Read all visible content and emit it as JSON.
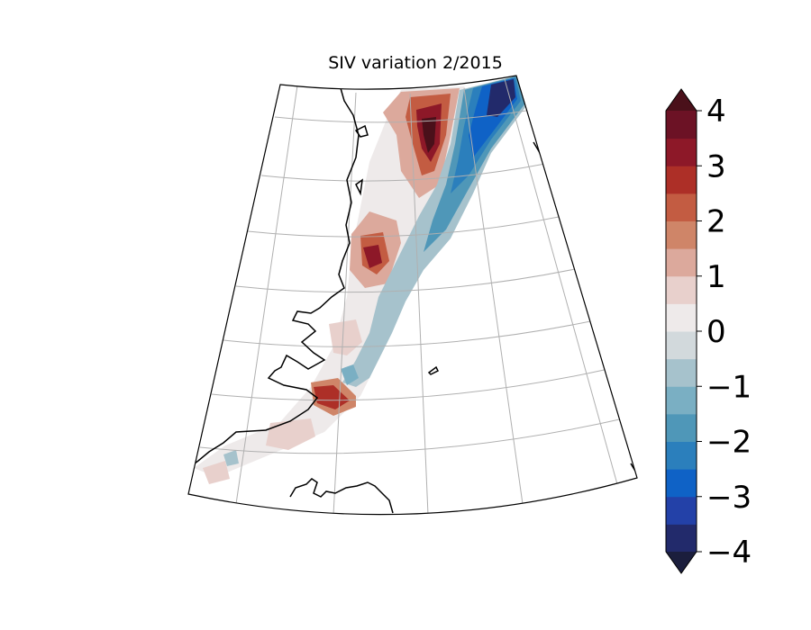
{
  "figure": {
    "title": "SIV variation 2/2015"
  },
  "colorbar": {
    "ticks": [
      "4",
      "3",
      "2",
      "1",
      "0",
      "−1",
      "−2",
      "−3",
      "−4"
    ],
    "range": [
      -4,
      4
    ],
    "levels": 16,
    "extend": "both",
    "colors": [
      "#1b1e3d",
      "#222a6b",
      "#2341a8",
      "#0f62c6",
      "#2b7fbc",
      "#4f97b8",
      "#7aafc3",
      "#a6c2cc",
      "#d2d9dc",
      "#eeeaea",
      "#e8d0cc",
      "#dca99c",
      "#cf8568",
      "#c35c42",
      "#ad2f27",
      "#8d1828",
      "#6c1225",
      "#4a101a"
    ]
  },
  "map": {
    "projection": "conic",
    "gridlines": true,
    "coastline": true,
    "field": "SIV variation"
  }
}
